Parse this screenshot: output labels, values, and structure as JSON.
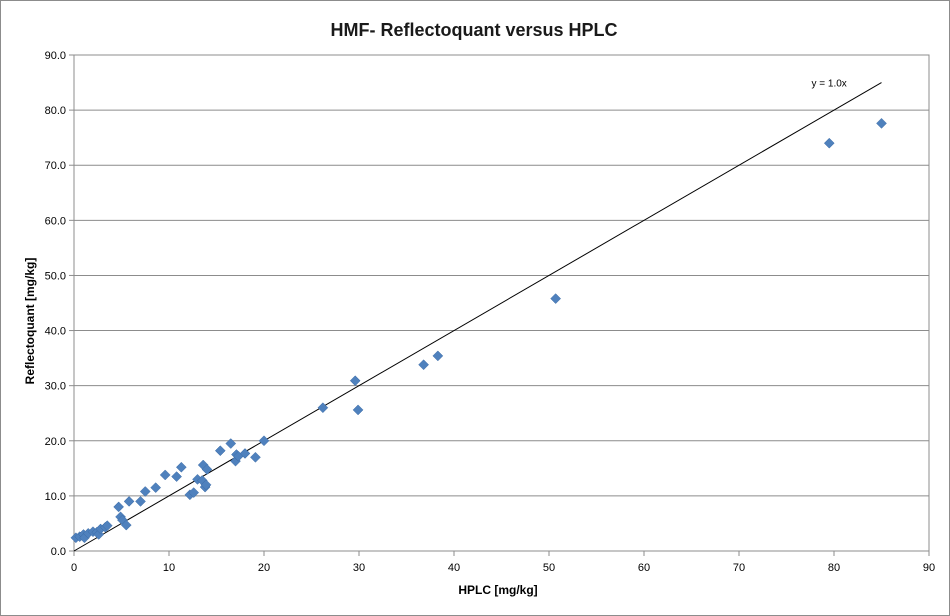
{
  "chart_data": {
    "type": "scatter",
    "title": "HMF- Reflectoquant versus HPLC",
    "xlabel": "HPLC [mg/kg]",
    "ylabel": "Reflectoquant [mg/kg]",
    "xlim": [
      0,
      90
    ],
    "ylim": [
      0,
      90
    ],
    "xticks": [
      0,
      10,
      20,
      30,
      40,
      50,
      60,
      70,
      80,
      90
    ],
    "xtick_labels": [
      "0",
      "10",
      "20",
      "30",
      "40",
      "50",
      "60",
      "70",
      "80",
      "90"
    ],
    "yticks": [
      0,
      10,
      20,
      30,
      40,
      50,
      60,
      70,
      80,
      90
    ],
    "ytick_labels": [
      "0.0",
      "10.0",
      "20.0",
      "30.0",
      "40.0",
      "50.0",
      "60.0",
      "70.0",
      "80.0",
      "90.0"
    ],
    "grid": "horizontal",
    "legend": "none",
    "marker_color": "#4f81bd",
    "trendline": {
      "slope": 1.0,
      "x_range": [
        0,
        85
      ],
      "label": "y = 1.0x"
    },
    "points": [
      [
        0.2,
        2.4
      ],
      [
        0.6,
        2.6
      ],
      [
        1.0,
        3.0
      ],
      [
        1.1,
        2.4
      ],
      [
        1.5,
        3.2
      ],
      [
        2.0,
        3.5
      ],
      [
        2.4,
        3.4
      ],
      [
        2.6,
        3.0
      ],
      [
        2.8,
        4.0
      ],
      [
        3.3,
        4.3
      ],
      [
        3.5,
        4.6
      ],
      [
        4.7,
        8.0
      ],
      [
        4.9,
        6.2
      ],
      [
        5.1,
        5.6
      ],
      [
        5.5,
        4.7
      ],
      [
        5.8,
        9.0
      ],
      [
        7.0,
        9.0
      ],
      [
        7.5,
        10.8
      ],
      [
        8.6,
        11.5
      ],
      [
        9.6,
        13.8
      ],
      [
        10.8,
        13.5
      ],
      [
        11.3,
        15.2
      ],
      [
        12.2,
        10.2
      ],
      [
        12.6,
        10.6
      ],
      [
        13.0,
        13.0
      ],
      [
        13.5,
        12.8
      ],
      [
        13.6,
        15.6
      ],
      [
        13.8,
        11.6
      ],
      [
        13.9,
        12.0
      ],
      [
        14.0,
        14.8
      ],
      [
        15.4,
        18.2
      ],
      [
        16.5,
        19.5
      ],
      [
        17.0,
        16.3
      ],
      [
        17.1,
        17.5
      ],
      [
        17.3,
        17.2
      ],
      [
        18.0,
        17.7
      ],
      [
        19.1,
        17.0
      ],
      [
        20.0,
        20.0
      ],
      [
        26.2,
        26.0
      ],
      [
        29.6,
        30.9
      ],
      [
        29.9,
        25.6
      ],
      [
        36.8,
        33.8
      ],
      [
        38.3,
        35.4
      ],
      [
        50.7,
        45.8
      ],
      [
        79.5,
        74.0
      ],
      [
        85.0,
        77.6
      ]
    ]
  }
}
